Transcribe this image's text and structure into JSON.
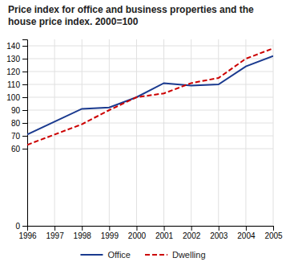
{
  "chart_data": {
    "type": "line",
    "title": "Price index for office and business properties and the house price index. 2000=100",
    "x": [
      1996,
      1997,
      1998,
      1999,
      2000,
      2001,
      2002,
      2003,
      2004,
      2005
    ],
    "series": [
      {
        "name": "Office",
        "color": "#1a3a8f",
        "line_style": "solid",
        "values": [
          71,
          81,
          91,
          92,
          100,
          111,
          109,
          110,
          124,
          132
        ]
      },
      {
        "name": "Dwelling",
        "color": "#cc0000",
        "line_style": "dashed",
        "values": [
          63,
          71,
          79,
          90,
          100,
          103,
          111,
          115,
          130,
          138
        ]
      }
    ],
    "xlim": [
      1996,
      2005
    ],
    "xticks": [
      1996,
      1997,
      1998,
      1999,
      2000,
      2001,
      2002,
      2003,
      2004,
      2005
    ],
    "ylim": [
      0,
      145
    ],
    "yticks": [
      0,
      60,
      70,
      80,
      90,
      100,
      110,
      120,
      130,
      140
    ],
    "grid": true,
    "legend": "bottom"
  }
}
